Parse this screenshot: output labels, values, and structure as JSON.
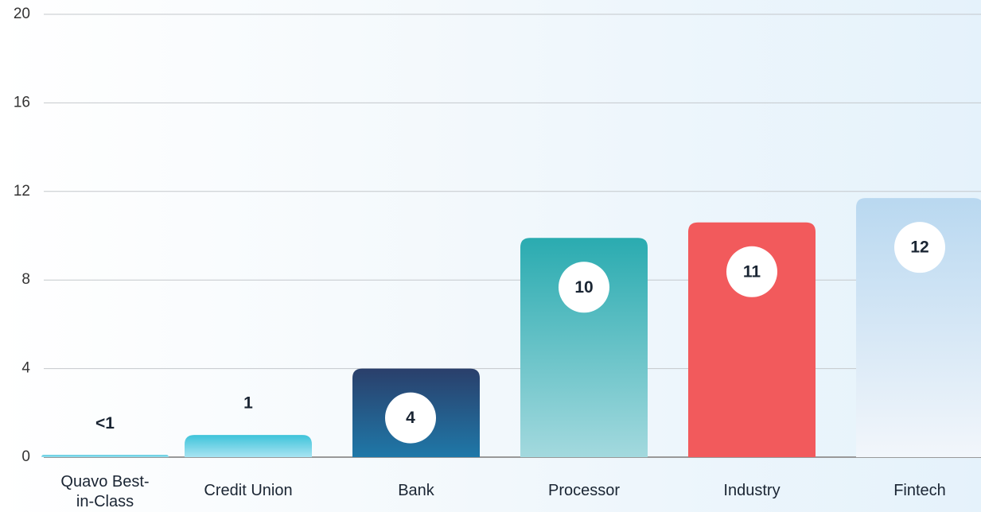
{
  "chart_data": {
    "type": "bar",
    "categories": [
      "Quavo Best-in-Class",
      "Credit Union",
      "Bank",
      "Processor",
      "Industry",
      "Fintech"
    ],
    "values": [
      0.1,
      1,
      4,
      9.9,
      10.6,
      11.7
    ],
    "value_labels": [
      "<1",
      "1",
      "4",
      "10",
      "11",
      "12"
    ],
    "colors": [
      [
        "#3ec3da",
        "#a8e4f2"
      ],
      [
        "#3ec3da",
        "#a8e4f2"
      ],
      [
        "#2a3f6b",
        "#1f78a8"
      ],
      [
        "#2aabb0",
        "#a3d9de"
      ],
      [
        "#f25a5c",
        "#f25a5c"
      ],
      [
        "#b9d8f0",
        "#f2f6fb"
      ]
    ],
    "ylim": [
      0,
      20
    ],
    "yticks": [
      0,
      4,
      8,
      12,
      16,
      20
    ],
    "grid": true
  }
}
